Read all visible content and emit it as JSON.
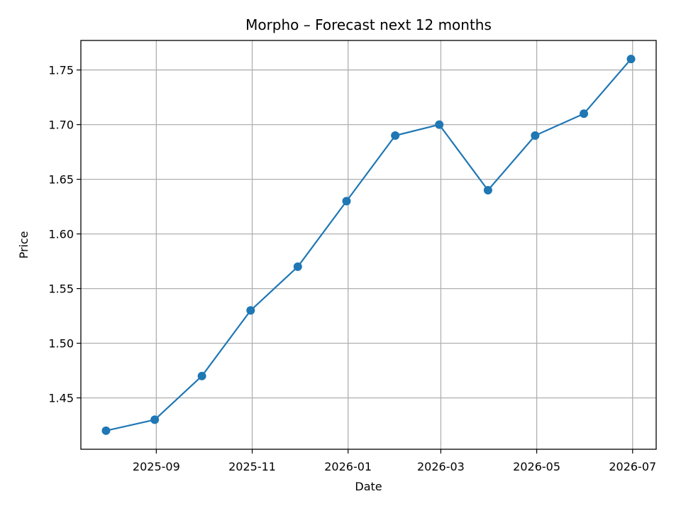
{
  "chart_data": {
    "type": "line",
    "title": "Morpho – Forecast next 12 months",
    "xlabel": "Date",
    "ylabel": "Price",
    "x": [
      "2025-07-31",
      "2025-08-31",
      "2025-09-30",
      "2025-10-31",
      "2025-11-30",
      "2025-12-31",
      "2026-01-31",
      "2026-02-28",
      "2026-03-31",
      "2026-04-30",
      "2026-05-31",
      "2026-06-30"
    ],
    "series": [
      {
        "values": [
          1.42,
          1.43,
          1.47,
          1.53,
          1.57,
          1.63,
          1.69,
          1.7,
          1.64,
          1.69,
          1.71,
          1.76
        ]
      }
    ],
    "x_ticks": [
      "2025-09",
      "2025-11",
      "2026-01",
      "2026-03",
      "2026-05",
      "2026-07"
    ],
    "y_ticks": [
      "1.45",
      "1.50",
      "1.55",
      "1.60",
      "1.65",
      "1.70",
      "1.75"
    ],
    "xlim": [
      "2025-07-15",
      "2026-07-16"
    ],
    "ylim": [
      1.403,
      1.777
    ],
    "grid": true,
    "line_color": "#1f77b4",
    "marker": "circle"
  }
}
